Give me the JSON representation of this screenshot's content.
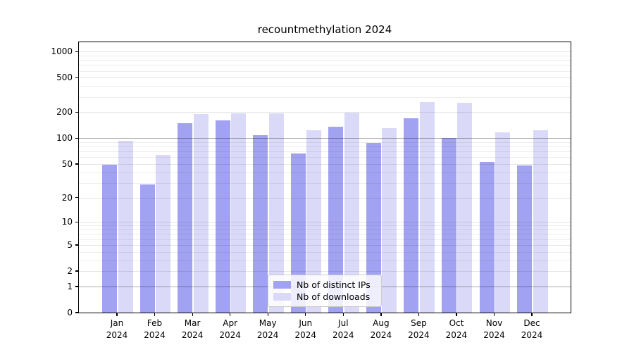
{
  "chart_data": {
    "type": "bar",
    "title": "recountmethylation 2024",
    "xlabel": "",
    "ylabel": "",
    "yscale": "log1p",
    "ylim": [
      0,
      1300
    ],
    "yticks": [
      0,
      1,
      2,
      5,
      10,
      20,
      50,
      100,
      200,
      500,
      1000
    ],
    "ytick_labels": [
      "0",
      "1",
      "2",
      "5",
      "10",
      "20",
      "50",
      "100",
      "200",
      "500",
      "1000"
    ],
    "grid": "on, log minor gridlines; darker rule lines at 1 and 100",
    "legend_position": "lower center",
    "year_label": "2024",
    "months": [
      "Jan",
      "Feb",
      "Mar",
      "Apr",
      "May",
      "Jun",
      "Jul",
      "Aug",
      "Sep",
      "Oct",
      "Nov",
      "Dec"
    ],
    "series": [
      {
        "name": "Nb of distinct IPs",
        "color": "#a2a2f2",
        "values": [
          49,
          29,
          150,
          162,
          109,
          66,
          137,
          89,
          170,
          100,
          53,
          48
        ]
      },
      {
        "name": "Nb of downloads",
        "color": "#dadaf8",
        "values": [
          93,
          64,
          192,
          194,
          196,
          125,
          197,
          132,
          263,
          259,
          116,
          125
        ]
      }
    ]
  }
}
